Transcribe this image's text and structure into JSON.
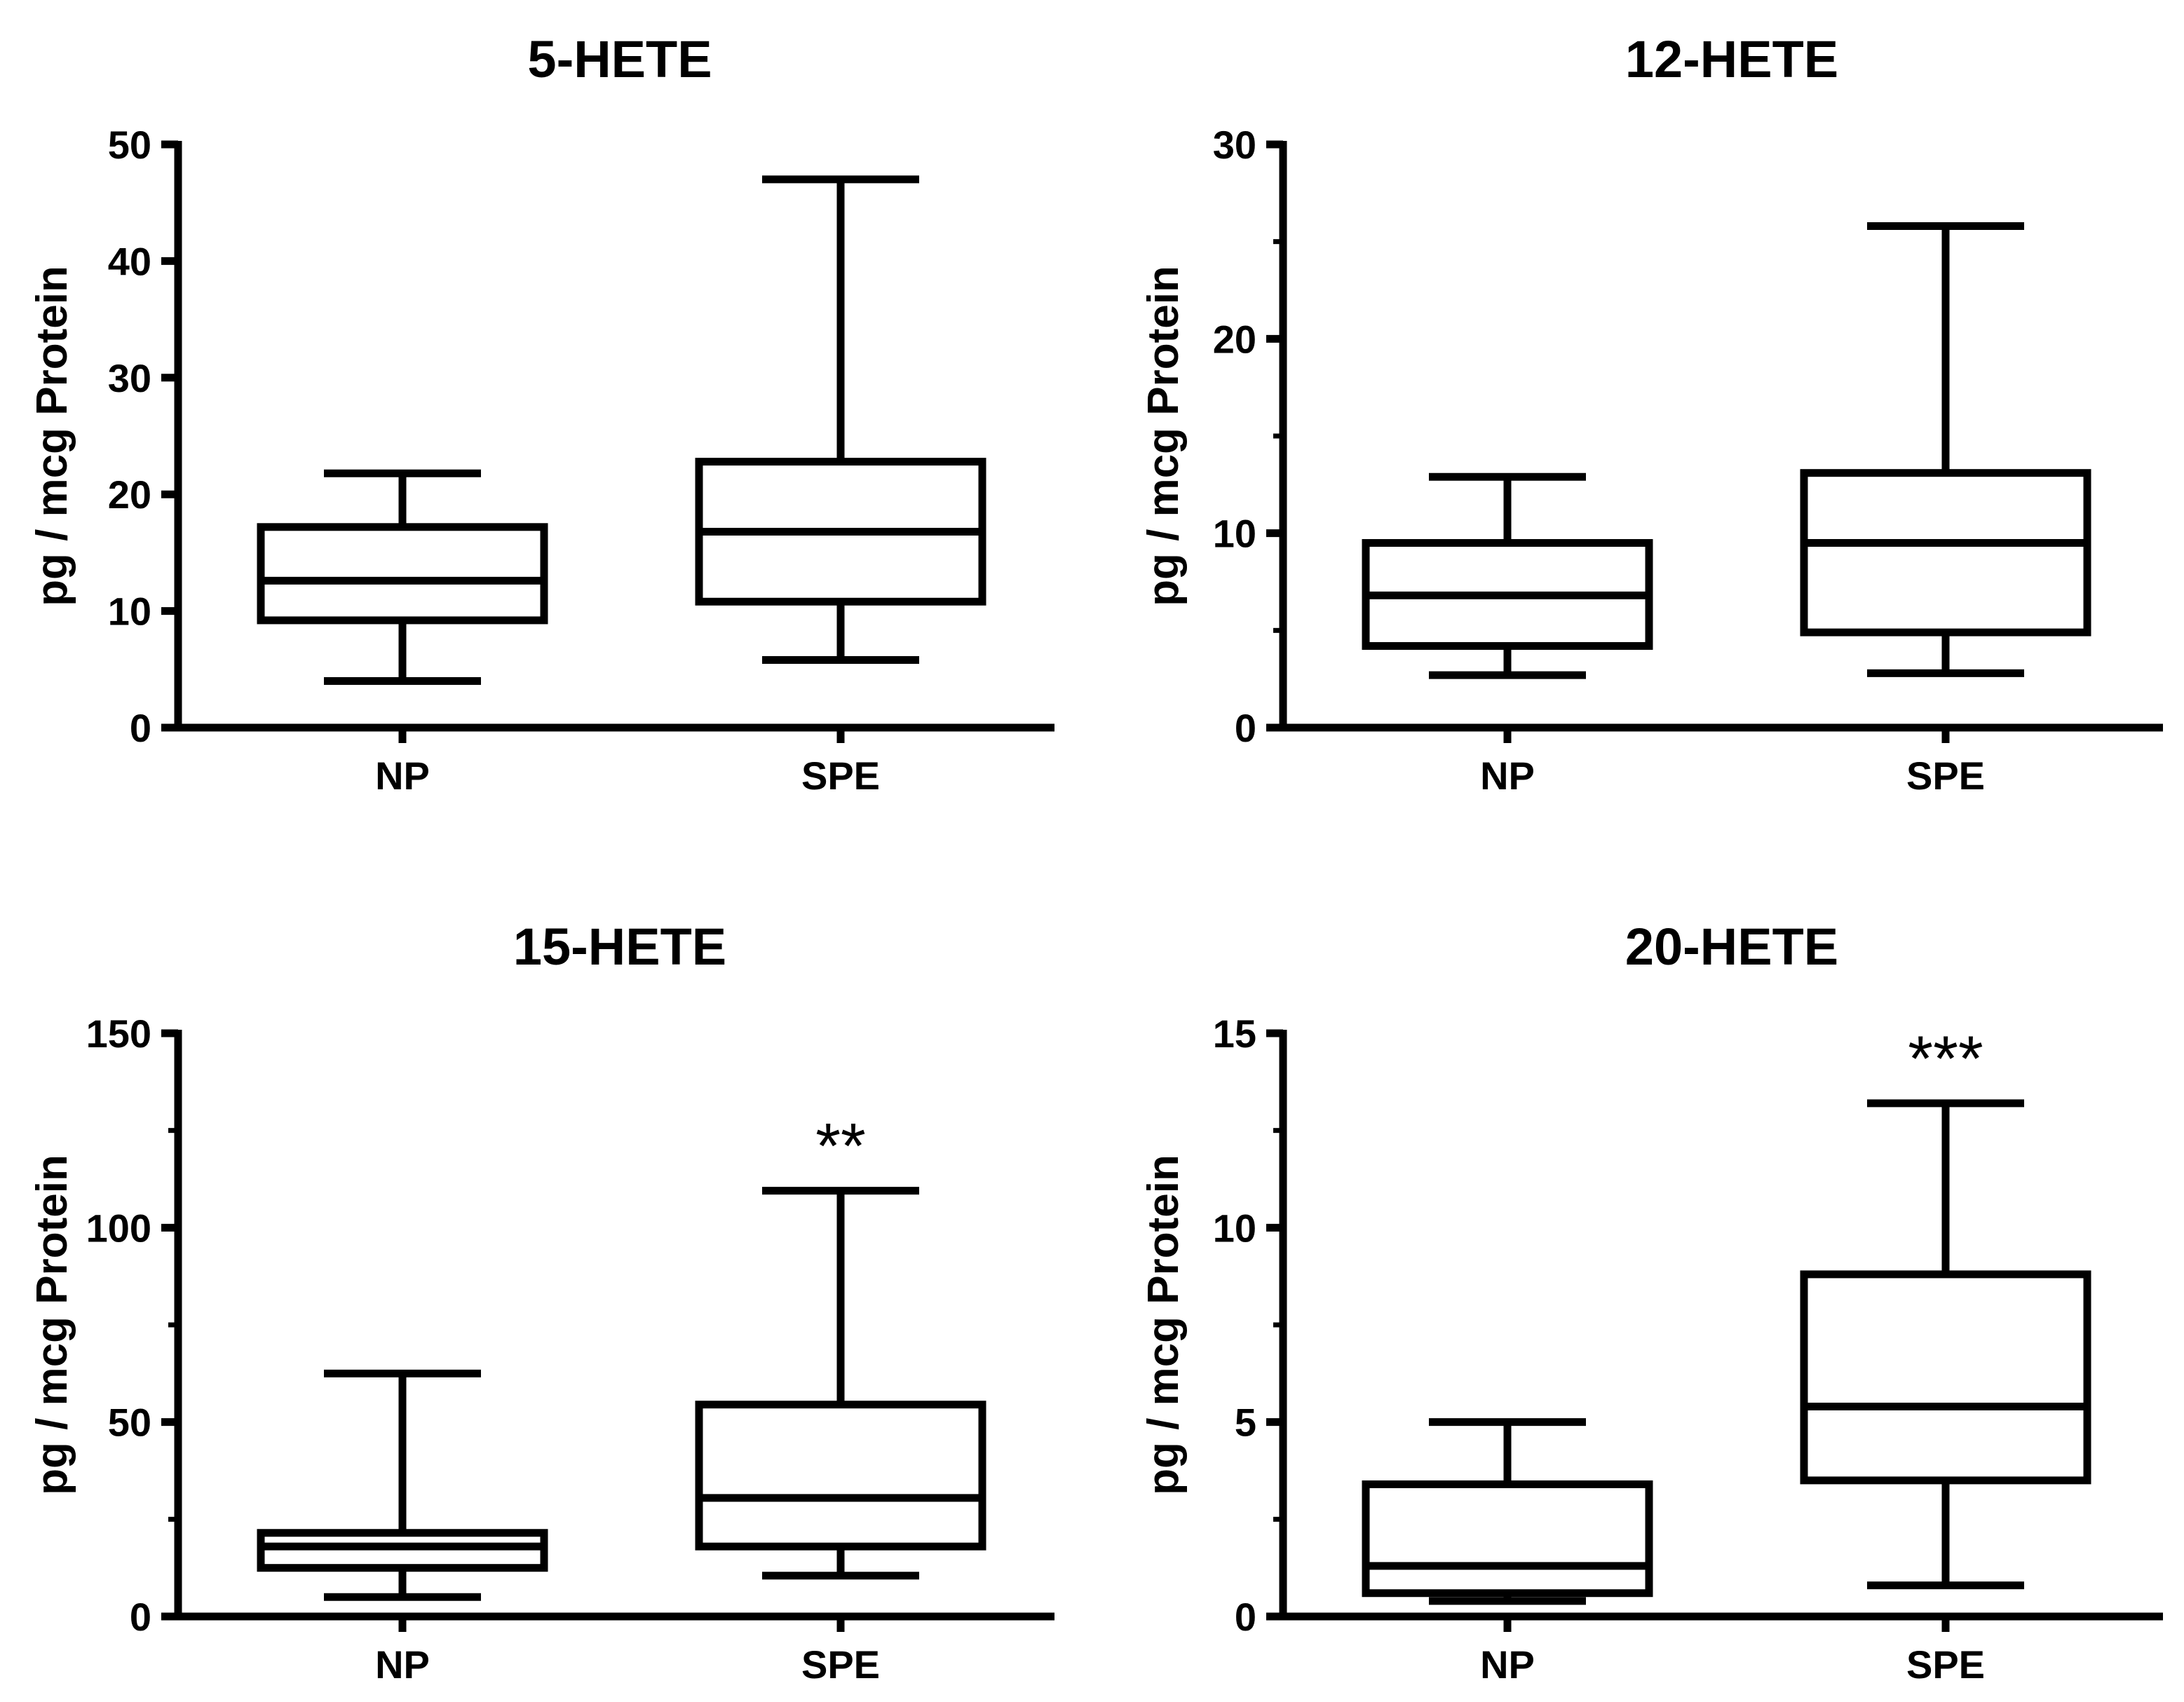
{
  "colors": {
    "ink": "#000000",
    "background": "#ffffff"
  },
  "chart_data": [
    {
      "type": "box",
      "title": "5-HETE",
      "ylabel": "pg / mcg  Protein",
      "ylim": [
        0,
        50
      ],
      "yticks": [
        0,
        10,
        20,
        30,
        40,
        50
      ],
      "minor_ticks": [],
      "categories": [
        "NP",
        "SPE"
      ],
      "boxes": [
        {
          "category": "NP",
          "min": 4,
          "q1": 9.2,
          "median": 12.6,
          "q3": 17.2,
          "max": 21.8,
          "annotation": ""
        },
        {
          "category": "SPE",
          "min": 5.8,
          "q1": 10.8,
          "median": 16.8,
          "q3": 22.8,
          "max": 47,
          "annotation": ""
        }
      ]
    },
    {
      "type": "box",
      "title": "12-HETE",
      "ylabel": "pg / mcg  Protein",
      "ylim": [
        0,
        30
      ],
      "yticks": [
        0,
        10,
        20,
        30
      ],
      "minor_ticks": [
        5,
        15,
        25
      ],
      "categories": [
        "NP",
        "SPE"
      ],
      "boxes": [
        {
          "category": "NP",
          "min": 2.7,
          "q1": 4.2,
          "median": 6.8,
          "q3": 9.5,
          "max": 12.9,
          "annotation": ""
        },
        {
          "category": "SPE",
          "min": 2.8,
          "q1": 4.9,
          "median": 9.5,
          "q3": 13.1,
          "max": 25.8,
          "annotation": ""
        }
      ]
    },
    {
      "type": "box",
      "title": "15-HETE",
      "ylabel": "pg / mcg  Protein",
      "ylim": [
        0,
        150
      ],
      "yticks": [
        0,
        50,
        100,
        150
      ],
      "minor_ticks": [
        25,
        75,
        125
      ],
      "categories": [
        "NP",
        "SPE"
      ],
      "boxes": [
        {
          "category": "NP",
          "min": 5,
          "q1": 12.5,
          "median": 18,
          "q3": 21.5,
          "max": 62.5,
          "annotation": ""
        },
        {
          "category": "SPE",
          "min": 10.5,
          "q1": 18,
          "median": 30.5,
          "q3": 54.5,
          "max": 109.5,
          "annotation": "**"
        }
      ]
    },
    {
      "type": "box",
      "title": "20-HETE",
      "ylabel": "pg / mcg  Protein",
      "ylim": [
        0,
        15
      ],
      "yticks": [
        0,
        5,
        10,
        15
      ],
      "minor_ticks": [
        2.5,
        7.5,
        12.5
      ],
      "categories": [
        "NP",
        "SPE"
      ],
      "boxes": [
        {
          "category": "NP",
          "min": 0.4,
          "q1": 0.6,
          "median": 1.3,
          "q3": 3.4,
          "max": 5,
          "annotation": ""
        },
        {
          "category": "SPE",
          "min": 0.8,
          "q1": 3.5,
          "median": 5.4,
          "q3": 8.8,
          "max": 13.2,
          "annotation": "***"
        }
      ]
    }
  ]
}
